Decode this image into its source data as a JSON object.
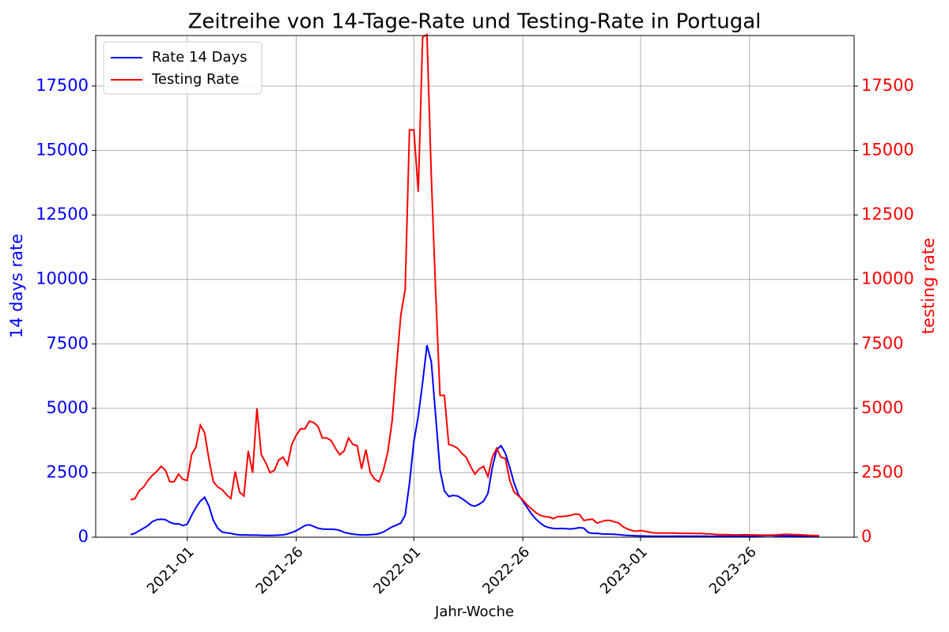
{
  "chart_data": {
    "type": "line",
    "title": "Zeitreihe von 14-Tage-Rate und Testing-Rate in Portugal",
    "xlabel": "Jahr-Woche",
    "ylabel": "14 days rate",
    "y2label": "testing rate",
    "ylabel_color": "#0000ff",
    "y2label_color": "#ff0000",
    "grid": true,
    "legend": "upper left",
    "categories": [
      null,
      null,
      null,
      null,
      null,
      null,
      null,
      null,
      null,
      null,
      null,
      null,
      null,
      "2021-01",
      null,
      null,
      null,
      null,
      null,
      null,
      null,
      null,
      null,
      null,
      null,
      null,
      null,
      null,
      null,
      null,
      null,
      null,
      null,
      null,
      null,
      null,
      null,
      null,
      "2021-26",
      null,
      null,
      null,
      null,
      null,
      null,
      null,
      null,
      null,
      null,
      null,
      null,
      null,
      null,
      null,
      null,
      null,
      null,
      null,
      null,
      null,
      null,
      null,
      null,
      null,
      null,
      "2022-01",
      null,
      null,
      null,
      null,
      null,
      null,
      null,
      null,
      null,
      null,
      null,
      null,
      null,
      null,
      null,
      null,
      null,
      null,
      null,
      null,
      null,
      null,
      null,
      null,
      "2022-26",
      null,
      null,
      null,
      null,
      null,
      null,
      null,
      null,
      null,
      null,
      null,
      null,
      null,
      null,
      null,
      null,
      null,
      null,
      null,
      null,
      null,
      null,
      null,
      null,
      null,
      null,
      "2023-01",
      null,
      null,
      null,
      null,
      null,
      null,
      null,
      null,
      null,
      null,
      null,
      null,
      null,
      null,
      null,
      null,
      null,
      null,
      null,
      null,
      null,
      null,
      null,
      null,
      "2023-26",
      null,
      null,
      null,
      null,
      null,
      null,
      null,
      null,
      null,
      null,
      null,
      null,
      null,
      null,
      null,
      null
    ],
    "ylim": [
      0,
      19460
    ],
    "yticks": [
      0,
      2500,
      5000,
      7500,
      10000,
      12500,
      15000,
      17500
    ],
    "y2lim": [
      0,
      19460
    ],
    "y2ticks": [
      0,
      2500,
      5000,
      7500,
      10000,
      12500,
      15000,
      17500
    ],
    "series": [
      {
        "name": "Rate 14 Days",
        "color": "#0000ff",
        "values": [
          100,
          150,
          250,
          350,
          450,
          600,
          680,
          700,
          680,
          580,
          520,
          520,
          450,
          500,
          850,
          1150,
          1400,
          1550,
          1200,
          650,
          350,
          200,
          170,
          150,
          110,
          90,
          90,
          85,
          80,
          80,
          75,
          70,
          70,
          75,
          80,
          90,
          130,
          180,
          250,
          350,
          450,
          480,
          420,
          350,
          320,
          310,
          310,
          300,
          260,
          190,
          150,
          120,
          100,
          90,
          90,
          100,
          110,
          140,
          200,
          300,
          400,
          470,
          550,
          850,
          2100,
          3700,
          4700,
          6000,
          7450,
          6800,
          4700,
          2600,
          1800,
          1580,
          1620,
          1600,
          1500,
          1380,
          1250,
          1200,
          1280,
          1400,
          1700,
          2700,
          3400,
          3550,
          3250,
          2700,
          2100,
          1650,
          1400,
          1150,
          900,
          700,
          550,
          430,
          370,
          340,
          330,
          340,
          330,
          320,
          340,
          370,
          350,
          180,
          150,
          150,
          130,
          120,
          120,
          110,
          100,
          80,
          70,
          60,
          55,
          50,
          45,
          40,
          40,
          40,
          40,
          40,
          40,
          40,
          40,
          40,
          40,
          40,
          40,
          40,
          40,
          35,
          35,
          35,
          35,
          35,
          35,
          35,
          35,
          35,
          40,
          45,
          50,
          55,
          60,
          60,
          55,
          50,
          50,
          45,
          45,
          40,
          40,
          35,
          35,
          30,
          30
        ]
      },
      {
        "name": "Testing Rate",
        "color": "#ff0000",
        "axis": "y2",
        "values": [
          1450,
          1500,
          1800,
          1950,
          2200,
          2400,
          2550,
          2750,
          2600,
          2150,
          2150,
          2450,
          2250,
          2200,
          3200,
          3500,
          4350,
          4050,
          3000,
          2150,
          1950,
          1850,
          1650,
          1500,
          2550,
          1750,
          1600,
          3350,
          2500,
          5000,
          3200,
          2900,
          2500,
          2600,
          3000,
          3100,
          2800,
          3600,
          3950,
          4200,
          4200,
          4500,
          4450,
          4300,
          3850,
          3850,
          3750,
          3450,
          3200,
          3350,
          3850,
          3600,
          3550,
          2650,
          3400,
          2500,
          2250,
          2150,
          2600,
          3300,
          4500,
          6600,
          8600,
          9600,
          15800,
          15800,
          13400,
          19400,
          19500,
          14000,
          9500,
          5500,
          5500,
          3600,
          3550,
          3450,
          3250,
          3100,
          2750,
          2450,
          2650,
          2750,
          2350,
          3100,
          3450,
          3100,
          3050,
          2200,
          1750,
          1600,
          1450,
          1250,
          1100,
          950,
          850,
          800,
          780,
          720,
          800,
          800,
          820,
          850,
          900,
          880,
          650,
          680,
          700,
          550,
          600,
          650,
          650,
          600,
          550,
          400,
          320,
          260,
          230,
          260,
          230,
          200,
          170,
          160,
          160,
          160,
          160,
          160,
          150,
          150,
          150,
          150,
          140,
          150,
          130,
          130,
          110,
          100,
          100,
          100,
          90,
          90,
          90,
          100,
          90,
          90,
          80,
          80,
          80,
          80,
          90,
          100,
          110,
          110,
          100,
          100,
          90,
          80,
          70,
          60,
          60
        ]
      }
    ]
  }
}
